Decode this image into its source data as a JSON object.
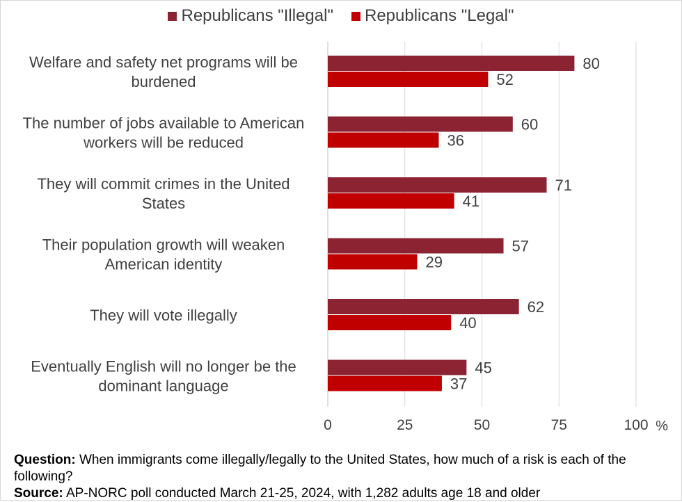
{
  "chart_data": {
    "type": "bar",
    "orientation": "horizontal",
    "categories": [
      [
        "Welfare and safety net programs will be",
        "burdened"
      ],
      [
        "The number of jobs available to American",
        "workers will be reduced"
      ],
      [
        "They will commit crimes in the United",
        "States"
      ],
      [
        "Their population growth will weaken",
        "American identity"
      ],
      [
        "They will vote illegally"
      ],
      [
        "Eventually English will no longer be the",
        "dominant language"
      ]
    ],
    "series": [
      {
        "name": "Republicans \"Illegal\"",
        "color": "#8b2332",
        "values": [
          80,
          60,
          71,
          57,
          62,
          45
        ]
      },
      {
        "name": "Republicans \"Legal\"",
        "color": "#c00000",
        "values": [
          52,
          36,
          41,
          29,
          40,
          37
        ]
      }
    ],
    "xlim": [
      0,
      100
    ],
    "xticks": [
      "0",
      "25",
      "50",
      "75",
      "100"
    ],
    "xticks_values": [
      0,
      25,
      50,
      75,
      100
    ],
    "x_unit": "%",
    "grid": true,
    "legend_position": "top-center"
  },
  "footnote": {
    "question_label": "Question:",
    "question_text": " When immigrants come illegally/legally to the United States, how much of a risk is each of the following?",
    "source_label": "Source:",
    "source_text": " AP-NORC poll conducted March 21-25, 2024, with 1,282 adults age 18 and older"
  }
}
